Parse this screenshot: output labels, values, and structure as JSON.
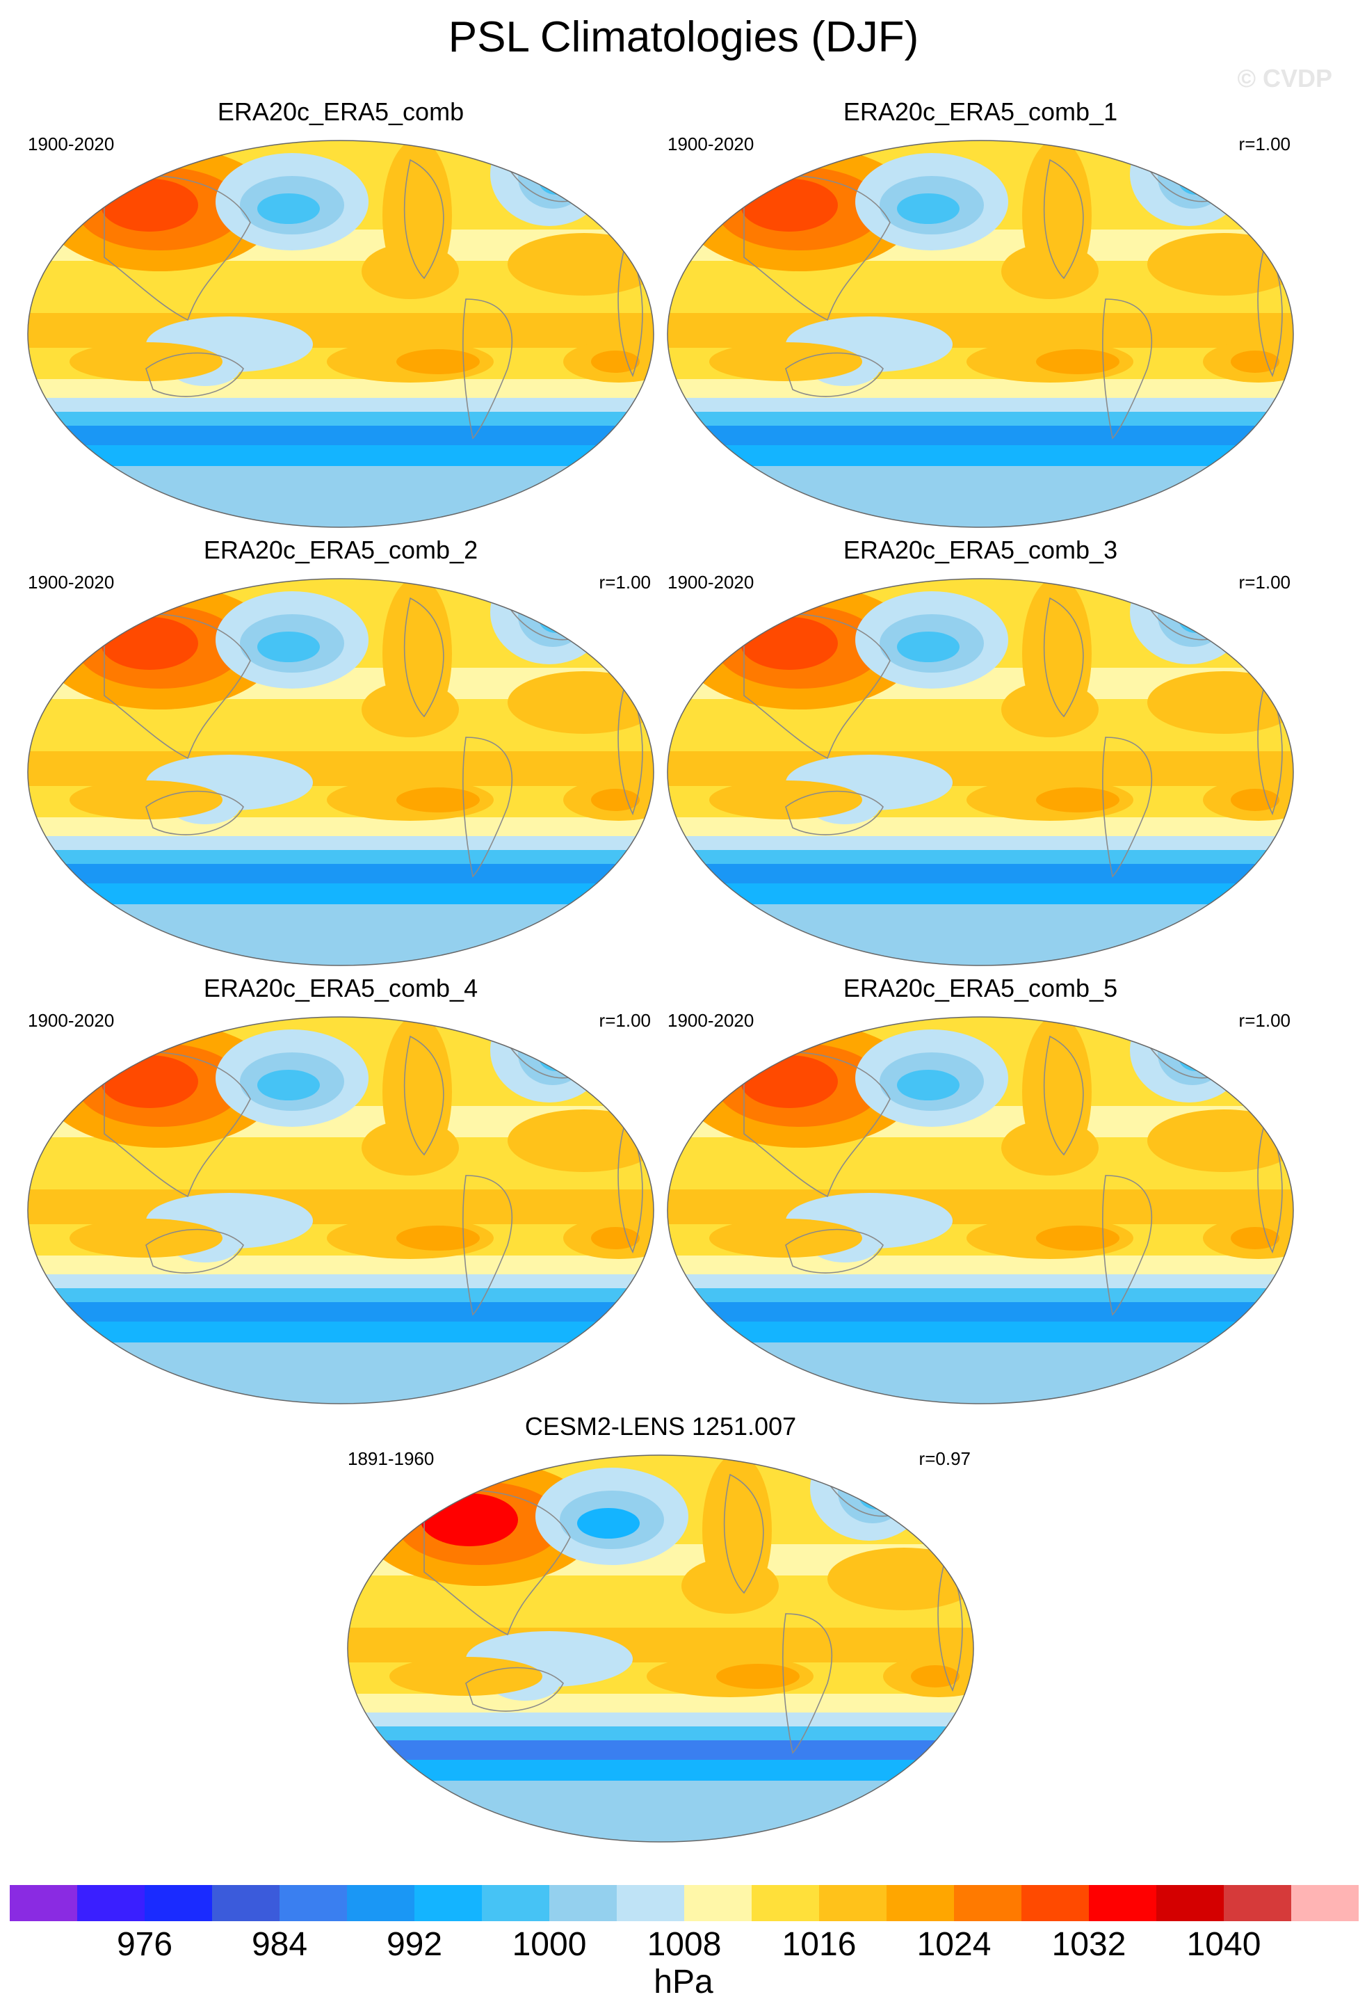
{
  "title": "PSL Climatologies (DJF)",
  "copyright": "© CVDP",
  "panels": [
    {
      "title": "ERA20c_ERA5_comb",
      "period": "1900-2020",
      "r": ""
    },
    {
      "title": "ERA20c_ERA5_comb_1",
      "period": "1900-2020",
      "r": "r=1.00"
    },
    {
      "title": "ERA20c_ERA5_comb_2",
      "period": "1900-2020",
      "r": "r=1.00"
    },
    {
      "title": "ERA20c_ERA5_comb_3",
      "period": "1900-2020",
      "r": "r=1.00"
    },
    {
      "title": "ERA20c_ERA5_comb_4",
      "period": "1900-2020",
      "r": "r=1.00"
    },
    {
      "title": "ERA20c_ERA5_comb_5",
      "period": "1900-2020",
      "r": "r=1.00"
    },
    {
      "title": "CESM2-LENS 1251.007",
      "period": "1891-1960",
      "r": "r=0.97"
    }
  ],
  "colorbar": {
    "unit": "hPa",
    "tick_labels": [
      "976",
      "984",
      "992",
      "1000",
      "1008",
      "1016",
      "1024",
      "1032",
      "1040"
    ],
    "colors": [
      "#8a2be2",
      "#3a1fff",
      "#1a2bff",
      "#3b5bdb",
      "#3a7ff0",
      "#1a97f5",
      "#14b4ff",
      "#46c3f5",
      "#94d0ee",
      "#bfe3f6",
      "#fff7a8",
      "#ffe03a",
      "#ffc21a",
      "#ffa600",
      "#ff7a00",
      "#ff4a00",
      "#ff0000",
      "#d40000",
      "#d63a3a",
      "#ffb4b4"
    ]
  },
  "chart_data": {
    "type": "heatmap",
    "title": "PSL Climatologies (DJF)",
    "variable": "PSL",
    "season": "DJF",
    "unit": "hPa",
    "levels": [
      972,
      976,
      980,
      984,
      988,
      992,
      996,
      1000,
      1004,
      1008,
      1012,
      1016,
      1020,
      1024,
      1028,
      1032,
      1036,
      1040,
      1044
    ],
    "panels": [
      {
        "name": "ERA20c_ERA5_comb",
        "period": "1900-2020"
      },
      {
        "name": "ERA20c_ERA5_comb_1",
        "period": "1900-2020",
        "r": 1.0
      },
      {
        "name": "ERA20c_ERA5_comb_2",
        "period": "1900-2020",
        "r": 1.0
      },
      {
        "name": "ERA20c_ERA5_comb_3",
        "period": "1900-2020",
        "r": 1.0
      },
      {
        "name": "ERA20c_ERA5_comb_4",
        "period": "1900-2020",
        "r": 1.0
      },
      {
        "name": "ERA20c_ERA5_comb_5",
        "period": "1900-2020",
        "r": 1.0
      },
      {
        "name": "CESM2-LENS 1251.007",
        "period": "1891-1960",
        "r": 0.97
      }
    ]
  }
}
